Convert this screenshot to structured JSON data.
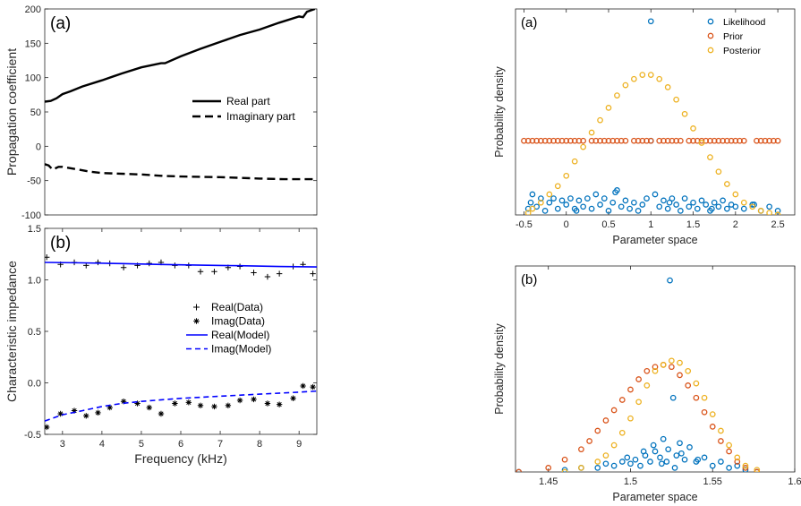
{
  "chart_data": [
    {
      "id": "left-a",
      "type": "line",
      "panel_label": "(a)",
      "ylabel": "Propagation coefficient",
      "xlabel": "",
      "xlim": [
        2.55,
        9.45
      ],
      "ylim": [
        -100,
        200
      ],
      "yticks": [
        -100,
        -50,
        0,
        50,
        100,
        150,
        200
      ],
      "legend_position": "center-right",
      "series": [
        {
          "name": "Real part",
          "style": "solid",
          "color": "#000000",
          "x": [
            2.55,
            2.7,
            2.85,
            3.0,
            3.2,
            3.5,
            4.0,
            4.5,
            5.0,
            5.5,
            5.6,
            6.0,
            6.5,
            7.0,
            7.5,
            8.0,
            8.5,
            9.0,
            9.1,
            9.2,
            9.4
          ],
          "y": [
            65,
            66,
            70,
            76,
            80,
            87,
            96,
            106,
            115,
            121,
            121,
            131,
            142,
            152,
            162,
            170,
            180,
            189,
            188,
            196,
            200
          ]
        },
        {
          "name": "Imaginary part",
          "style": "dashed",
          "color": "#000000",
          "x": [
            2.55,
            2.65,
            2.75,
            2.9,
            3.0,
            3.3,
            3.7,
            4.0,
            5.0,
            5.5,
            6.0,
            7.0,
            8.0,
            8.6,
            9.0,
            9.4
          ],
          "y": [
            -26,
            -28,
            -34,
            -30,
            -30,
            -33,
            -37,
            -39,
            -41,
            -43,
            -44,
            -45,
            -47,
            -48,
            -48,
            -48
          ]
        }
      ]
    },
    {
      "id": "left-b",
      "type": "scatter",
      "panel_label": "(b)",
      "ylabel": "Characteristic impedance",
      "xlabel": "Frequency (kHz)",
      "xlim": [
        2.55,
        9.45
      ],
      "ylim": [
        -0.5,
        1.5
      ],
      "xticks": [
        3,
        4,
        5,
        6,
        7,
        8,
        9
      ],
      "yticks": [
        -0.5,
        0,
        0.5,
        1,
        1.5
      ],
      "ytick_labels": [
        "-0.5",
        "0.0",
        "0.5",
        "1.0",
        "1.5"
      ],
      "legend_position": "center-right",
      "series": [
        {
          "name": "Real(Data)",
          "marker": "+",
          "color": "#000000",
          "x": [
            2.6,
            2.95,
            3.3,
            3.6,
            3.9,
            4.2,
            4.55,
            4.9,
            5.2,
            5.5,
            5.85,
            6.2,
            6.5,
            6.85,
            7.2,
            7.5,
            7.85,
            8.2,
            8.5,
            8.85,
            9.1,
            9.35
          ],
          "y": [
            1.22,
            1.15,
            1.17,
            1.14,
            1.17,
            1.16,
            1.12,
            1.14,
            1.16,
            1.17,
            1.14,
            1.14,
            1.08,
            1.08,
            1.12,
            1.13,
            1.07,
            1.03,
            1.06,
            1.13,
            1.15,
            1.06
          ]
        },
        {
          "name": "Imag(Data)",
          "marker": "*",
          "color": "#000000",
          "x": [
            2.6,
            2.95,
            3.3,
            3.6,
            3.9,
            4.2,
            4.55,
            4.9,
            5.2,
            5.5,
            5.85,
            6.2,
            6.5,
            6.85,
            7.2,
            7.5,
            7.85,
            8.2,
            8.5,
            8.85,
            9.1,
            9.35
          ],
          "y": [
            -0.43,
            -0.3,
            -0.27,
            -0.32,
            -0.29,
            -0.24,
            -0.18,
            -0.2,
            -0.24,
            -0.3,
            -0.2,
            -0.19,
            -0.22,
            -0.23,
            -0.22,
            -0.17,
            -0.16,
            -0.2,
            -0.21,
            -0.15,
            -0.03,
            -0.04
          ]
        },
        {
          "name": "Real(Model)",
          "style": "solid",
          "color": "#0000ff",
          "x": [
            2.55,
            3.5,
            4.5,
            5.5,
            6.5,
            7.5,
            8.5,
            9.45
          ],
          "y": [
            1.17,
            1.165,
            1.158,
            1.15,
            1.143,
            1.137,
            1.13,
            1.125
          ]
        },
        {
          "name": "Imag(Model)",
          "style": "dashed",
          "color": "#0000ff",
          "x": [
            2.55,
            3.0,
            3.5,
            4.0,
            4.5,
            5.0,
            6.0,
            7.0,
            8.0,
            9.0,
            9.45
          ],
          "y": [
            -0.37,
            -0.31,
            -0.27,
            -0.23,
            -0.2,
            -0.18,
            -0.15,
            -0.13,
            -0.11,
            -0.09,
            -0.08
          ]
        }
      ]
    },
    {
      "id": "right-a",
      "type": "scatter",
      "panel_label": "(a)",
      "ylabel": "Probability density",
      "xlabel": "Parameter space",
      "xlim": [
        -0.6,
        2.7
      ],
      "ylim": [
        0,
        1
      ],
      "xticks": [
        -0.5,
        0,
        0.5,
        1,
        1.5,
        2,
        2.5
      ],
      "xtick_labels": [
        "-0.5",
        "0",
        "0.5",
        "1",
        "1.5",
        "2",
        "2.5"
      ],
      "legend_position": "top-right",
      "series": [
        {
          "name": "Likelihood",
          "color": "#0072bd",
          "x": [
            -0.45,
            -0.4,
            -0.35,
            -0.3,
            -0.25,
            -0.2,
            -0.15,
            -0.1,
            -0.05,
            0.0,
            0.05,
            0.1,
            0.15,
            0.2,
            0.25,
            0.3,
            0.35,
            0.4,
            0.45,
            0.5,
            0.55,
            0.6,
            0.65,
            0.7,
            0.75,
            0.8,
            0.85,
            0.9,
            0.95,
            1.0,
            1.0,
            1.05,
            1.1,
            1.15,
            1.2,
            1.25,
            1.3,
            1.35,
            1.4,
            1.45,
            1.5,
            1.55,
            1.6,
            1.65,
            1.7,
            1.75,
            1.8,
            1.85,
            1.9,
            1.95,
            2.0,
            2.1,
            2.2,
            2.3,
            2.4,
            2.5,
            -0.42,
            0.12,
            0.58,
            1.22,
            1.72,
            2.22
          ],
          "y": [
            0.03,
            0.1,
            0.04,
            0.08,
            0.02,
            0.06,
            0.08,
            0.03,
            0.07,
            0.05,
            0.08,
            0.03,
            0.07,
            0.04,
            0.08,
            0.03,
            0.1,
            0.05,
            0.08,
            0.02,
            0.06,
            0.12,
            0.04,
            0.07,
            0.03,
            0.06,
            0.02,
            0.05,
            0.08,
            0.94,
            0.36,
            0.1,
            0.04,
            0.07,
            0.03,
            0.08,
            0.05,
            0.02,
            0.08,
            0.04,
            0.06,
            0.03,
            0.07,
            0.05,
            0.02,
            0.06,
            0.04,
            0.07,
            0.03,
            0.05,
            0.04,
            0.03,
            0.05,
            0.02,
            0.04,
            0.02,
            0.06,
            0.02,
            0.11,
            0.06,
            0.03,
            0.05
          ]
        },
        {
          "name": "Prior",
          "color": "#d95319",
          "x": [
            -0.5,
            -0.45,
            -0.4,
            -0.35,
            -0.3,
            -0.25,
            -0.2,
            -0.15,
            -0.1,
            -0.05,
            0.0,
            0.05,
            0.1,
            0.15,
            0.2,
            0.3,
            0.35,
            0.4,
            0.45,
            0.5,
            0.55,
            0.6,
            0.65,
            0.7,
            0.8,
            0.85,
            0.9,
            0.95,
            1.0,
            1.1,
            1.15,
            1.2,
            1.25,
            1.3,
            1.35,
            1.45,
            1.5,
            1.55,
            1.6,
            1.65,
            1.7,
            1.75,
            1.8,
            1.85,
            1.9,
            1.95,
            2.0,
            2.05,
            2.1,
            2.25,
            2.3,
            2.35,
            2.4,
            2.45,
            2.5
          ],
          "y": [
            0.36,
            0.36,
            0.36,
            0.36,
            0.36,
            0.36,
            0.36,
            0.36,
            0.36,
            0.36,
            0.36,
            0.36,
            0.36,
            0.36,
            0.36,
            0.36,
            0.36,
            0.36,
            0.36,
            0.36,
            0.36,
            0.36,
            0.36,
            0.36,
            0.36,
            0.36,
            0.36,
            0.36,
            0.36,
            0.36,
            0.36,
            0.36,
            0.36,
            0.36,
            0.36,
            0.36,
            0.36,
            0.36,
            0.36,
            0.36,
            0.36,
            0.36,
            0.36,
            0.36,
            0.36,
            0.36,
            0.36,
            0.36,
            0.36,
            0.36,
            0.36,
            0.36,
            0.36,
            0.36,
            0.36
          ]
        },
        {
          "name": "Posterior",
          "color": "#edb120",
          "x": [
            -0.45,
            -0.4,
            -0.3,
            -0.2,
            -0.1,
            0.0,
            0.1,
            0.2,
            0.3,
            0.4,
            0.5,
            0.6,
            0.7,
            0.8,
            0.9,
            1.0,
            1.1,
            1.2,
            1.3,
            1.4,
            1.5,
            1.6,
            1.7,
            1.8,
            1.9,
            2.0,
            2.1,
            2.2,
            2.3,
            2.4,
            2.5
          ],
          "y": [
            0.01,
            0.03,
            0.06,
            0.1,
            0.14,
            0.19,
            0.26,
            0.33,
            0.4,
            0.46,
            0.52,
            0.58,
            0.63,
            0.66,
            0.68,
            0.68,
            0.66,
            0.62,
            0.56,
            0.49,
            0.42,
            0.35,
            0.28,
            0.21,
            0.15,
            0.1,
            0.06,
            0.04,
            0.02,
            0.01,
            0.0
          ]
        }
      ]
    },
    {
      "id": "right-b",
      "type": "scatter",
      "panel_label": "(b)",
      "ylabel": "Probability density",
      "xlabel": "Parameter space",
      "xlim": [
        1.43,
        1.6
      ],
      "ylim": [
        0,
        1
      ],
      "xticks": [
        1.45,
        1.5,
        1.55,
        1.6
      ],
      "xtick_labels": [
        "1.45",
        "1.5",
        "1.55",
        "1.6"
      ],
      "series": [
        {
          "name": "Likelihood",
          "color": "#0072bd",
          "x": [
            1.432,
            1.46,
            1.47,
            1.48,
            1.485,
            1.49,
            1.495,
            1.5,
            1.503,
            1.506,
            1.509,
            1.512,
            1.515,
            1.518,
            1.52,
            1.522,
            1.524,
            1.526,
            1.528,
            1.53,
            1.533,
            1.536,
            1.54,
            1.545,
            1.55,
            1.555,
            1.56,
            1.565,
            1.57,
            1.577,
            1.498,
            1.514,
            1.519,
            1.523,
            1.527,
            1.531,
            1.508,
            1.541
          ],
          "y": [
            0.0,
            0.01,
            0.02,
            0.02,
            0.04,
            0.03,
            0.05,
            0.04,
            0.06,
            0.03,
            0.08,
            0.05,
            0.1,
            0.07,
            0.16,
            0.05,
            0.93,
            0.36,
            0.08,
            0.14,
            0.06,
            0.12,
            0.05,
            0.07,
            0.03,
            0.05,
            0.02,
            0.03,
            0.01,
            0.0,
            0.07,
            0.13,
            0.04,
            0.11,
            0.02,
            0.09,
            0.1,
            0.06
          ]
        },
        {
          "name": "Prior",
          "color": "#d95319",
          "x": [
            1.432,
            1.45,
            1.46,
            1.47,
            1.475,
            1.48,
            1.485,
            1.49,
            1.495,
            1.5,
            1.505,
            1.51,
            1.515,
            1.52,
            1.525,
            1.53,
            1.535,
            1.54,
            1.545,
            1.55,
            1.555,
            1.56,
            1.565,
            1.57,
            1.577
          ],
          "y": [
            0.0,
            0.02,
            0.06,
            0.11,
            0.15,
            0.2,
            0.25,
            0.3,
            0.35,
            0.4,
            0.45,
            0.49,
            0.51,
            0.52,
            0.51,
            0.47,
            0.42,
            0.36,
            0.29,
            0.22,
            0.15,
            0.1,
            0.05,
            0.02,
            0.0
          ]
        },
        {
          "name": "Posterior",
          "color": "#edb120",
          "x": [
            1.46,
            1.47,
            1.48,
            1.485,
            1.49,
            1.495,
            1.5,
            1.505,
            1.51,
            1.515,
            1.52,
            1.525,
            1.53,
            1.535,
            1.54,
            1.545,
            1.55,
            1.555,
            1.56,
            1.565,
            1.57,
            1.577
          ],
          "y": [
            0.0,
            0.02,
            0.05,
            0.08,
            0.13,
            0.19,
            0.26,
            0.34,
            0.42,
            0.49,
            0.52,
            0.54,
            0.53,
            0.49,
            0.43,
            0.36,
            0.28,
            0.2,
            0.13,
            0.07,
            0.03,
            0.01
          ]
        }
      ]
    }
  ]
}
